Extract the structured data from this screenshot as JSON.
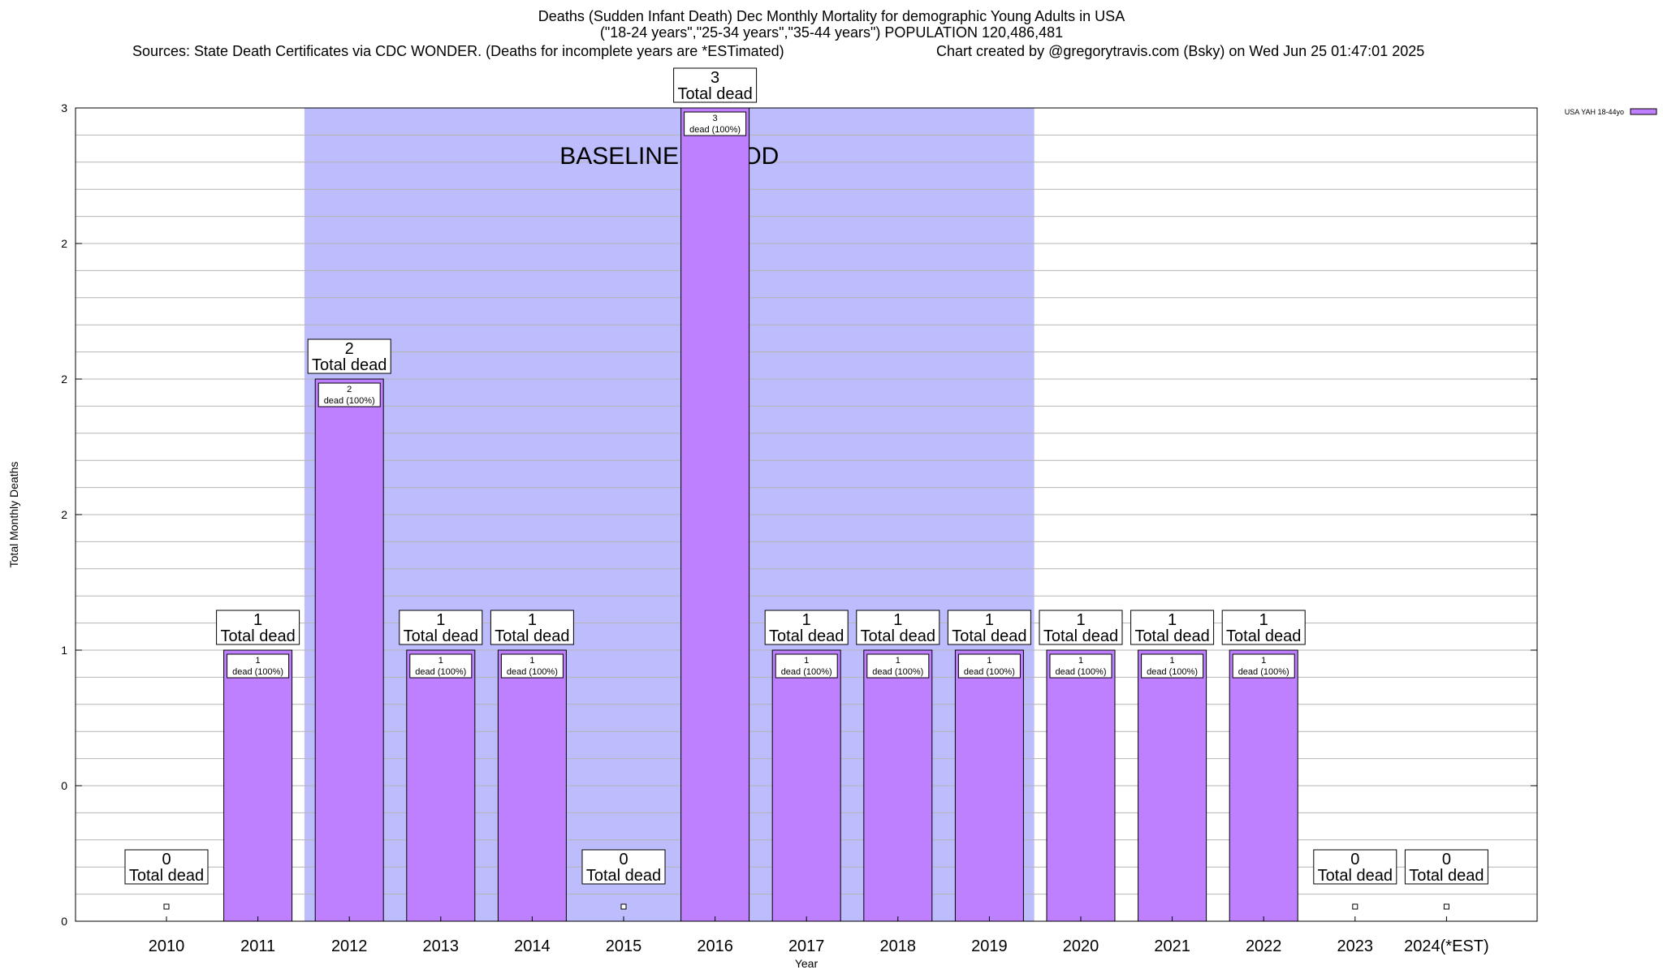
{
  "header": {
    "title_line1": "Deaths (Sudden Infant Death) Dec Monthly Mortality for demographic Young Adults in USA",
    "title_line2": "(\"18-24 years\",\"25-34 years\",\"35-44 years\") POPULATION 120,486,481",
    "sources": "Sources: State Death Certificates via CDC WONDER. (Deaths for incomplete years are *ESTimated)",
    "credit": "Chart created by @gregorytravis.com (Bsky) on Wed Jun 25 01:47:01 2025"
  },
  "chart_data": {
    "type": "bar",
    "categories": [
      "2010",
      "2011",
      "2012",
      "2013",
      "2014",
      "2015",
      "2016",
      "2017",
      "2018",
      "2019",
      "2020",
      "2021",
      "2022",
      "2023",
      "2024(*EST)"
    ],
    "series": [
      {
        "name": "USA YAH 18-44yo",
        "values": [
          0,
          1,
          2,
          1,
          1,
          0,
          3,
          1,
          1,
          1,
          1,
          1,
          1,
          0,
          0
        ]
      }
    ],
    "xlabel": "Year",
    "ylabel": "Total Monthly Deaths",
    "ylim": [
      0,
      3
    ],
    "y_tick_values": [
      0,
      0.5,
      1,
      1.5,
      2,
      2.5,
      3
    ],
    "y_tick_labels": [
      "0",
      "0",
      "1",
      "2",
      "2",
      "2",
      "3"
    ],
    "grid": true,
    "legend_position": "top-right",
    "total_label_suffix": "Total dead",
    "inner_label_suffix": "dead (100%)",
    "baseline": {
      "label": "BASELINE PERIOD",
      "start": "2012",
      "end": "2019",
      "color": "#bdbdfd"
    },
    "bar_color": "#bf80ff"
  }
}
